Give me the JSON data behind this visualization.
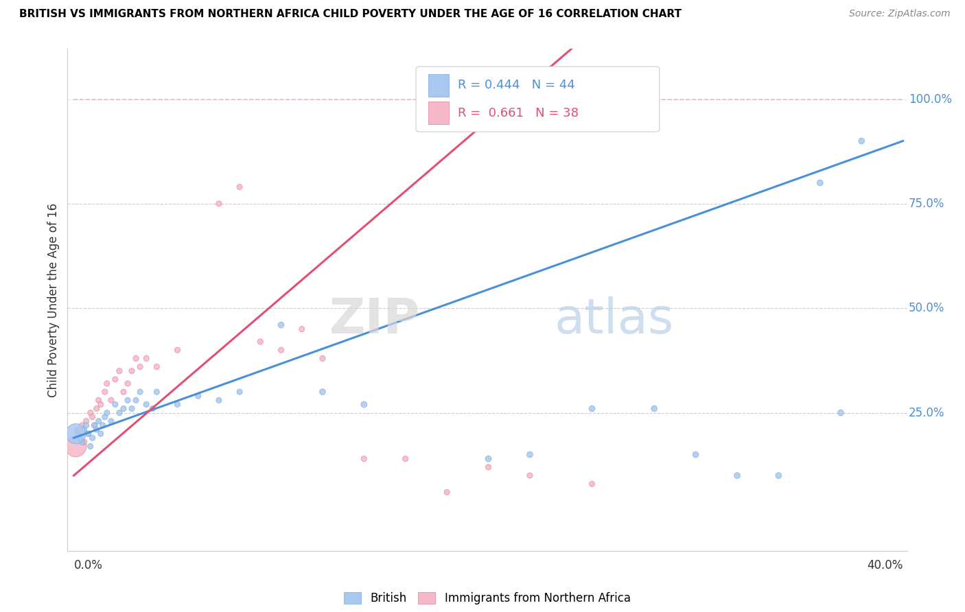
{
  "title": "BRITISH VS IMMIGRANTS FROM NORTHERN AFRICA CHILD POVERTY UNDER THE AGE OF 16 CORRELATION CHART",
  "source": "Source: ZipAtlas.com",
  "ylabel": "Child Poverty Under the Age of 16",
  "ytick_labels": [
    "",
    "25.0%",
    "50.0%",
    "75.0%",
    "100.0%"
  ],
  "ytick_values": [
    0.0,
    0.25,
    0.5,
    0.75,
    1.0
  ],
  "legend_british_r": "R = 0.444",
  "legend_british_n": "N = 44",
  "legend_immigrants_r": "R =  0.661",
  "legend_immigrants_n": "N = 38",
  "watermark_zip": "ZIP",
  "watermark_atlas": "atlas",
  "british_color": "#a8c8f0",
  "british_edge_color": "#7aaad4",
  "immigrant_color": "#f5b8c8",
  "immigrant_edge_color": "#e08098",
  "british_line_color": "#4a90d9",
  "immigrant_line_color": "#e05070",
  "diag_line_color": "#e8a0b0",
  "grid_color": "#cccccc",
  "british_x": [
    0.002,
    0.003,
    0.004,
    0.005,
    0.006,
    0.007,
    0.008,
    0.009,
    0.01,
    0.011,
    0.012,
    0.013,
    0.014,
    0.015,
    0.016,
    0.018,
    0.02,
    0.022,
    0.024,
    0.026,
    0.028,
    0.03,
    0.032,
    0.035,
    0.038,
    0.04,
    0.05,
    0.06,
    0.07,
    0.08,
    0.1,
    0.12,
    0.14,
    0.2,
    0.22,
    0.25,
    0.28,
    0.3,
    0.32,
    0.34,
    0.36,
    0.38,
    0.37,
    0.001
  ],
  "british_y": [
    0.2,
    0.19,
    0.18,
    0.21,
    0.22,
    0.2,
    0.17,
    0.19,
    0.22,
    0.21,
    0.23,
    0.2,
    0.22,
    0.24,
    0.25,
    0.23,
    0.27,
    0.25,
    0.26,
    0.28,
    0.26,
    0.28,
    0.3,
    0.27,
    0.26,
    0.3,
    0.27,
    0.29,
    0.28,
    0.3,
    0.46,
    0.3,
    0.27,
    0.14,
    0.15,
    0.26,
    0.26,
    0.15,
    0.1,
    0.1,
    0.8,
    0.9,
    0.25,
    0.2
  ],
  "british_sizes": [
    35,
    35,
    35,
    35,
    35,
    35,
    35,
    35,
    35,
    35,
    35,
    35,
    35,
    35,
    35,
    35,
    35,
    35,
    35,
    35,
    35,
    35,
    35,
    35,
    35,
    35,
    35,
    35,
    35,
    35,
    40,
    40,
    40,
    40,
    40,
    40,
    40,
    40,
    40,
    40,
    40,
    40,
    40,
    450
  ],
  "immigrant_x": [
    0.001,
    0.002,
    0.003,
    0.004,
    0.005,
    0.006,
    0.007,
    0.008,
    0.009,
    0.01,
    0.011,
    0.012,
    0.013,
    0.015,
    0.016,
    0.018,
    0.02,
    0.022,
    0.024,
    0.026,
    0.028,
    0.03,
    0.032,
    0.035,
    0.04,
    0.05,
    0.07,
    0.08,
    0.09,
    0.1,
    0.11,
    0.12,
    0.14,
    0.16,
    0.18,
    0.2,
    0.22,
    0.25
  ],
  "immigrant_y": [
    0.17,
    0.21,
    0.19,
    0.22,
    0.18,
    0.23,
    0.2,
    0.25,
    0.24,
    0.22,
    0.26,
    0.28,
    0.27,
    0.3,
    0.32,
    0.28,
    0.33,
    0.35,
    0.3,
    0.32,
    0.35,
    0.38,
    0.36,
    0.38,
    0.36,
    0.4,
    0.75,
    0.79,
    0.42,
    0.4,
    0.45,
    0.38,
    0.14,
    0.14,
    0.06,
    0.12,
    0.1,
    0.08
  ],
  "immigrant_sizes": [
    500,
    35,
    35,
    35,
    35,
    35,
    35,
    35,
    35,
    35,
    35,
    35,
    35,
    35,
    35,
    35,
    35,
    35,
    35,
    35,
    35,
    35,
    35,
    35,
    35,
    35,
    35,
    35,
    35,
    35,
    35,
    35,
    35,
    35,
    35,
    35,
    35,
    35
  ],
  "british_line_x": [
    0.0,
    0.4
  ],
  "british_line_y": [
    0.19,
    0.9
  ],
  "immigrant_line_x": [
    0.0,
    0.14
  ],
  "immigrant_line_y": [
    0.1,
    0.6
  ],
  "diag_line_x": [
    0.06,
    0.38
  ],
  "diag_line_y": [
    0.995,
    0.995
  ],
  "xlim": [
    -0.003,
    0.402
  ],
  "ylim": [
    -0.08,
    1.12
  ]
}
